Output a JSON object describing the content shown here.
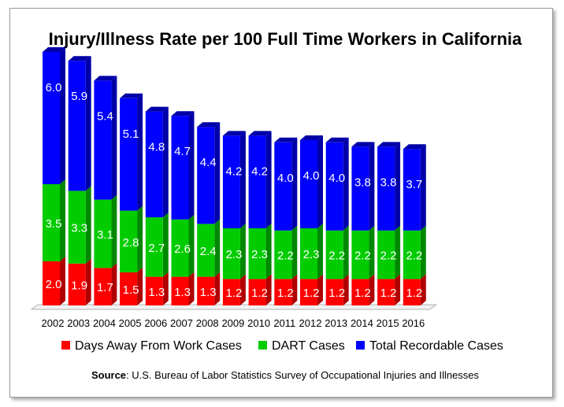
{
  "chart_data": {
    "type": "bar",
    "stacked": true,
    "title": "Injury/Illness Rate per 100 Full Time Workers in California",
    "categories": [
      "2002",
      "2003",
      "2004",
      "2005",
      "2006",
      "2007",
      "2008",
      "2009",
      "2010",
      "2011",
      "2012",
      "2013",
      "2014",
      "2015",
      "2016"
    ],
    "series": [
      {
        "name": "Days Away From Work Cases",
        "color": "#ff0000",
        "side": "#b00000",
        "values": [
          2.0,
          1.9,
          1.7,
          1.5,
          1.3,
          1.3,
          1.3,
          1.2,
          1.2,
          1.2,
          1.2,
          1.2,
          1.2,
          1.2,
          1.2
        ]
      },
      {
        "name": "DART Cases",
        "color": "#00cc00",
        "side": "#008800",
        "values": [
          3.5,
          3.3,
          3.1,
          2.8,
          2.7,
          2.6,
          2.4,
          2.3,
          2.3,
          2.2,
          2.3,
          2.2,
          2.2,
          2.2,
          2.2
        ]
      },
      {
        "name": "Total Recordable Cases",
        "color": "#0000ff",
        "side": "#0000a8",
        "values": [
          6.0,
          5.9,
          5.4,
          5.1,
          4.8,
          4.7,
          4.4,
          4.2,
          4.2,
          4.0,
          4.0,
          4.0,
          3.8,
          3.8,
          3.7
        ]
      }
    ],
    "legend_position": "bottom",
    "grid": false,
    "source_label": "Source",
    "source_text": ": U.S. Bureau of Labor Statistics Survey of Occupational Injuries and Illnesses"
  }
}
